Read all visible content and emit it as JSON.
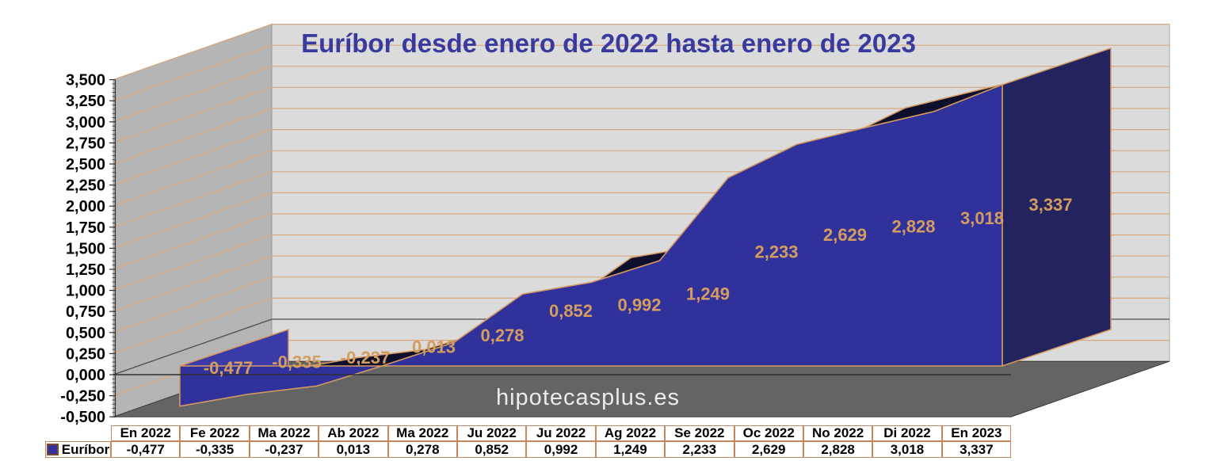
{
  "title": "Euríbor desde enero de 2022 hasta enero de 2023",
  "watermark": "hipotecasplus.es",
  "legend": {
    "series_label": "Euríbor"
  },
  "chart_data": {
    "type": "area",
    "projection": "3d",
    "title": "Euríbor desde enero de 2022 hasta enero de 2023",
    "categories": [
      "En 2022",
      "Fe 2022",
      "Ma 2022",
      "Ab 2022",
      "Ma 2022",
      "Ju 2022",
      "Ju 2022",
      "Ag 2022",
      "Se 2022",
      "Oc 2022",
      "No 2022",
      "Di 2022",
      "En 2023"
    ],
    "series": [
      {
        "name": "Euríbor",
        "values": [
          -0.477,
          -0.335,
          -0.237,
          0.013,
          0.278,
          0.852,
          0.992,
          1.249,
          2.233,
          2.629,
          2.828,
          3.018,
          3.337
        ]
      }
    ],
    "value_labels": [
      "-0,477",
      "-0,335",
      "-0,237",
      "0,013",
      "0,278",
      "0,852",
      "0,992",
      "1,249",
      "2,233",
      "2,629",
      "2,828",
      "3,018",
      "3,337"
    ],
    "y_axis": {
      "min": -0.5,
      "max": 3.5,
      "major_step": 0.25,
      "tick_labels": [
        "3,500",
        "3,250",
        "3,000",
        "2,750",
        "2,500",
        "2,250",
        "2,000",
        "1,750",
        "1,500",
        "1,250",
        "1,000",
        "0,750",
        "0,500",
        "0,250",
        "0,000",
        "-0,250",
        "-0,500"
      ]
    },
    "grid": true,
    "legend_position": "bottom-table",
    "colors": {
      "title": "#39399e",
      "area_front": "#31319b",
      "area_top": "#0e0e2d",
      "area_right_cap": "#232360",
      "area_left_cap": "#3a3aa8",
      "area_outline": "#d49a62",
      "data_label": "#d49d60",
      "gridline": "#d8a87c",
      "zero_line": "#2e2e2e",
      "back_wall": "#dbdbdb",
      "side_wall": "#b5b5b5",
      "floor": "#646464",
      "axis_text": "#000000",
      "table_border": "#c8875a",
      "watermark_text": "#ebebeb",
      "legend_marker": "#3333a0"
    }
  }
}
